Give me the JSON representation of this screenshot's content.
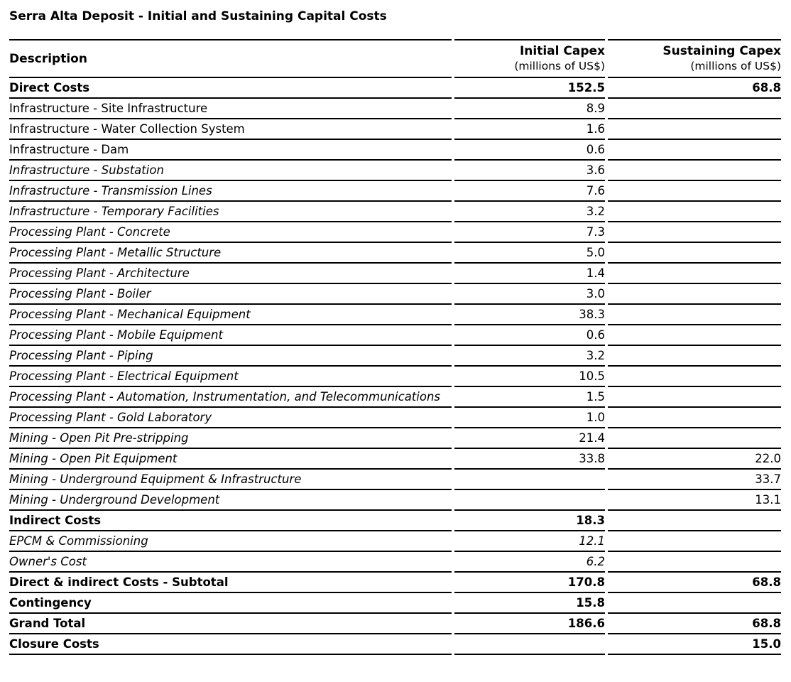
{
  "title": "Serra Alta Deposit - Initial and Sustaining Capital Costs",
  "table": {
    "columns": [
      {
        "label": "Description",
        "units": ""
      },
      {
        "label": "Initial Capex",
        "units": "(millions of US$)"
      },
      {
        "label": "Sustaining Capex",
        "units": "(millions of US$)"
      }
    ],
    "rows": [
      {
        "description": "Direct Costs",
        "initial": "152.5",
        "sustaining": "68.8",
        "style": "bold",
        "value_style": "bold"
      },
      {
        "description": "Infrastructure - Site Infrastructure",
        "initial": "8.9",
        "sustaining": "",
        "style": "regular",
        "value_style": "regular"
      },
      {
        "description": "Infrastructure - Water Collection System",
        "initial": "1.6",
        "sustaining": "",
        "style": "regular",
        "value_style": "regular"
      },
      {
        "description": "Infrastructure - Dam",
        "initial": "0.6",
        "sustaining": "",
        "style": "regular",
        "value_style": "regular"
      },
      {
        "description": "Infrastructure - Substation",
        "initial": "3.6",
        "sustaining": "",
        "style": "italic",
        "value_style": "regular"
      },
      {
        "description": "Infrastructure - Transmission Lines",
        "initial": "7.6",
        "sustaining": "",
        "style": "italic",
        "value_style": "regular"
      },
      {
        "description": "Infrastructure - Temporary Facilities",
        "initial": "3.2",
        "sustaining": "",
        "style": "italic",
        "value_style": "regular"
      },
      {
        "description": "Processing Plant - Concrete",
        "initial": "7.3",
        "sustaining": "",
        "style": "italic",
        "value_style": "regular"
      },
      {
        "description": "Processing Plant - Metallic Structure",
        "initial": "5.0",
        "sustaining": "",
        "style": "italic",
        "value_style": "regular"
      },
      {
        "description": "Processing Plant - Architecture",
        "initial": "1.4",
        "sustaining": "",
        "style": "italic",
        "value_style": "regular"
      },
      {
        "description": "Processing Plant - Boiler",
        "initial": "3.0",
        "sustaining": "",
        "style": "italic",
        "value_style": "regular"
      },
      {
        "description": "Processing Plant - Mechanical Equipment",
        "initial": "38.3",
        "sustaining": "",
        "style": "italic",
        "value_style": "regular"
      },
      {
        "description": "Processing Plant - Mobile Equipment",
        "initial": "0.6",
        "sustaining": "",
        "style": "italic",
        "value_style": "regular"
      },
      {
        "description": "Processing Plant - Piping",
        "initial": "3.2",
        "sustaining": "",
        "style": "italic",
        "value_style": "regular"
      },
      {
        "description": "Processing Plant - Electrical Equipment",
        "initial": "10.5",
        "sustaining": "",
        "style": "italic",
        "value_style": "regular"
      },
      {
        "description": "Processing Plant - Automation, Instrumentation, and Telecommunications",
        "initial": "1.5",
        "sustaining": "",
        "style": "italic",
        "value_style": "regular"
      },
      {
        "description": "Processing Plant - Gold Laboratory",
        "initial": "1.0",
        "sustaining": "",
        "style": "italic",
        "value_style": "regular"
      },
      {
        "description": "Mining - Open Pit Pre-stripping",
        "initial": "21.4",
        "sustaining": "",
        "style": "italic",
        "value_style": "regular"
      },
      {
        "description": "Mining - Open Pit Equipment",
        "initial": "33.8",
        "sustaining": "22.0",
        "style": "italic",
        "value_style": "regular"
      },
      {
        "description": "Mining - Underground Equipment & Infrastructure",
        "initial": "",
        "sustaining": "33.7",
        "style": "italic",
        "value_style": "regular"
      },
      {
        "description": "Mining - Underground Development",
        "initial": "",
        "sustaining": "13.1",
        "style": "italic",
        "value_style": "regular"
      },
      {
        "description": "Indirect Costs",
        "initial": "18.3",
        "sustaining": "",
        "style": "bold",
        "value_style": "bold"
      },
      {
        "description": "EPCM & Commissioning",
        "initial": "12.1",
        "sustaining": "",
        "style": "italic",
        "value_style": "italic"
      },
      {
        "description": "Owner's Cost",
        "initial": "6.2",
        "sustaining": "",
        "style": "italic",
        "value_style": "italic"
      },
      {
        "description": "Direct & indirect Costs - Subtotal",
        "initial": "170.8",
        "sustaining": "68.8",
        "style": "bold",
        "value_style": "bold"
      },
      {
        "description": "Contingency",
        "initial": "15.8",
        "sustaining": "",
        "style": "bold",
        "value_style": "bold"
      },
      {
        "description": "Grand Total",
        "initial": "186.6",
        "sustaining": "68.8",
        "style": "bold",
        "value_style": "bold"
      },
      {
        "description": "Closure Costs",
        "initial": "",
        "sustaining": "15.0",
        "style": "bold",
        "value_style": "bold"
      }
    ]
  }
}
